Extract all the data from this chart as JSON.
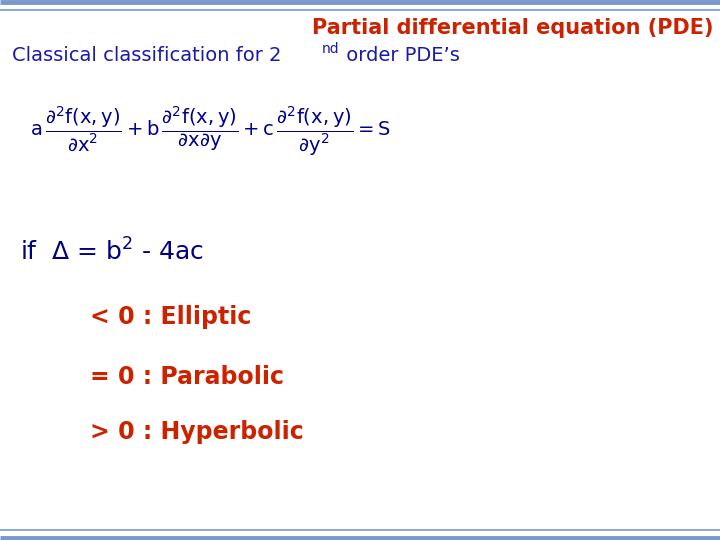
{
  "title": "Partial differential equation (PDE)",
  "title_color": "#CC2200",
  "title_fontsize": 15,
  "subtitle_color": "#1a1aaa",
  "subtitle_fontsize": 14,
  "equation_color": "#00008B",
  "if_line_color": "#000080",
  "conditions": [
    {
      "text": "< 0 : Elliptic",
      "color": "#CC2200"
    },
    {
      "text": "= 0 : Parabolic",
      "color": "#CC2200"
    },
    {
      "text": "> 0 : Hyperbolic",
      "color": "#CC2200"
    }
  ],
  "top_line_color": "#7799CC",
  "bottom_line_color": "#7799CC",
  "bg_color": "#FFFFFF",
  "conditions_fontsize": 17,
  "equation_fontsize": 14,
  "if_fontsize": 16
}
